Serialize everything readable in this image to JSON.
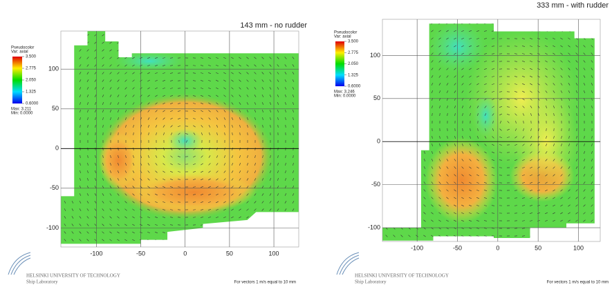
{
  "chart_data": [
    {
      "type": "pseudocolor",
      "title": "143 mm - no rudder",
      "legend_title": "Pseudocolor",
      "legend_variable": "Var: axial",
      "colorbar_ticks": [
        {
          "value": 3.5,
          "label": "3.500"
        },
        2.775,
        {
          "value": 2.05,
          "label": "2.050"
        },
        1.325,
        {
          "value": 0.6,
          "label": "0.6000"
        }
      ],
      "max_label": "Max: 3.211",
      "min_label": "Min: 0.0000",
      "xlim": [
        -140,
        128
      ],
      "xticks": [
        -100,
        -50,
        0,
        50,
        100
      ],
      "ylim": [
        -124,
        148
      ],
      "yticks": [
        -100,
        -50,
        0,
        50,
        100
      ],
      "grid": true
    },
    {
      "type": "pseudocolor",
      "title": "333 mm - with rudder",
      "legend_title": "Pseudocolor",
      "legend_variable": "Var: axial",
      "colorbar_ticks": [
        {
          "value": 3.5,
          "label": "3.500"
        },
        2.775,
        {
          "value": 2.05,
          "label": "2.050"
        },
        1.325,
        {
          "value": 0.6,
          "label": "0.6000"
        }
      ],
      "max_label": "Max: 3.246",
      "min_label": "Min: 0.0000",
      "xlim": [
        -143,
        127
      ],
      "xticks": [
        -100,
        -50,
        0,
        50,
        100
      ],
      "ylim": [
        -116,
        142
      ],
      "yticks": [
        -100,
        -50,
        0,
        50,
        100
      ],
      "grid": true
    }
  ],
  "footer": {
    "university": "HELSINKI UNIVERSITY OF TECHNOLOGY",
    "lab": "Ship Laboratory",
    "note": "For vectors 1 m/s equal to 10 mm"
  }
}
